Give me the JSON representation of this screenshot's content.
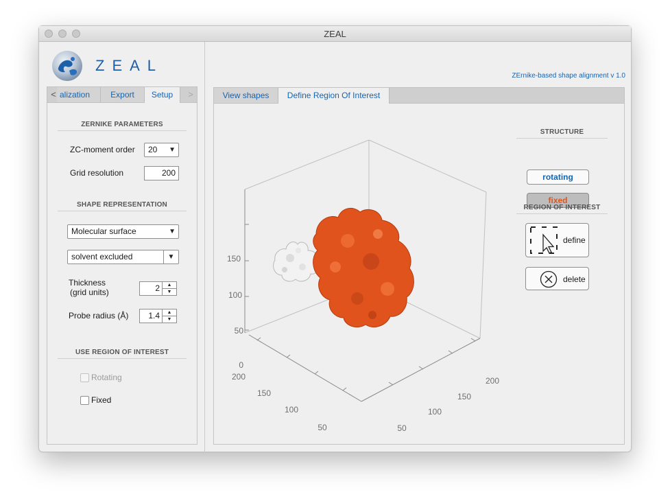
{
  "window": {
    "title": "ZEAL"
  },
  "brand": {
    "logo_text": "ZEAL",
    "subtitle": "ZErnike-based shape alignment v 1.0",
    "logo_icon": "zeal-logo-icon"
  },
  "left_tabs": {
    "prev_arrow": "<",
    "next_arrow": ">",
    "items": [
      {
        "label": "alization"
      },
      {
        "label": "Export"
      },
      {
        "label": "Setup"
      }
    ],
    "active": "Setup"
  },
  "zernike": {
    "title": "ZERNIKE PARAMETERS",
    "order_label": "ZC-moment order",
    "order_value": "20",
    "grid_label": "Grid resolution",
    "grid_value": "200"
  },
  "shape": {
    "title": "SHAPE REPRESENTATION",
    "representation": "Molecular surface",
    "surface_type": "solvent excluded",
    "thickness_label_1": "Thickness",
    "thickness_label_2": "(grid units)",
    "thickness_value": "2",
    "probe_label": "Probe radius (Å)",
    "probe_value": "1.4"
  },
  "roi_use": {
    "title": "USE REGION OF INTEREST",
    "rotating_label": "Rotating",
    "fixed_label": "Fixed",
    "rotating_checked": false,
    "rotating_enabled": false,
    "fixed_checked": false
  },
  "right_tabs": {
    "items": [
      {
        "label": "View shapes"
      },
      {
        "label": "Define Region Of Interest"
      }
    ],
    "active": "Define Region Of Interest"
  },
  "structure": {
    "title": "STRUCTURE",
    "rotating_button": "rotating",
    "fixed_button": "fixed",
    "rotating_color": "#1464b4",
    "fixed_color": "#e0531c"
  },
  "region": {
    "title": "REGION OF INTEREST",
    "define_button": "define",
    "delete_button": "delete",
    "define_icon": "selection-cursor-icon",
    "delete_icon": "close-circle-icon"
  },
  "plot": {
    "z_ticks": [
      "0",
      "50",
      "100",
      "150"
    ],
    "x_ticks": [
      "200",
      "150",
      "100",
      "50"
    ],
    "y_ticks": [
      "200",
      "150",
      "100",
      "50"
    ],
    "rotating_color": "#f2f2f2",
    "fixed_color": "#e0531c"
  }
}
